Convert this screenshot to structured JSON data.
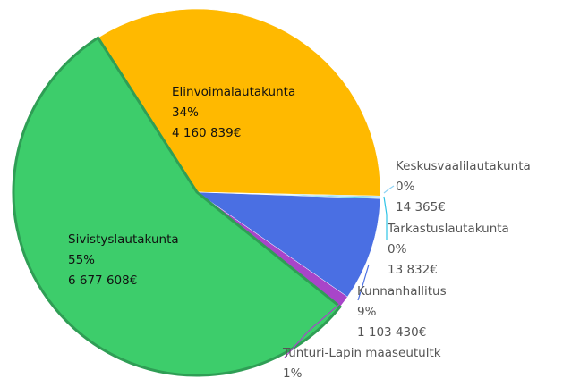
{
  "chart_data": {
    "type": "pie",
    "categories": [
      "Elinvoimalautakunta",
      "Keskusvaalilautakunta",
      "Tarkastuslautakunta",
      "Kunnanhallitus",
      "Tunturi-Lapin maaseutultk",
      "Sivistyslautakunta"
    ],
    "values": [
      4160839,
      14365,
      13832,
      1103430,
      130000,
      6677608
    ],
    "percent_labels": [
      "34%",
      "0%",
      "0%",
      "9%",
      "1%",
      "55%"
    ],
    "value_labels": [
      "4 160 839€",
      "14 365€",
      "13 832€",
      "1 103 430€",
      null,
      "6 677 608€"
    ],
    "colors": [
      "#ffb900",
      "#8fd3f4",
      "#2ec4e6",
      "#4a6fe3",
      "#a845c9",
      "#3dcd6b"
    ]
  }
}
